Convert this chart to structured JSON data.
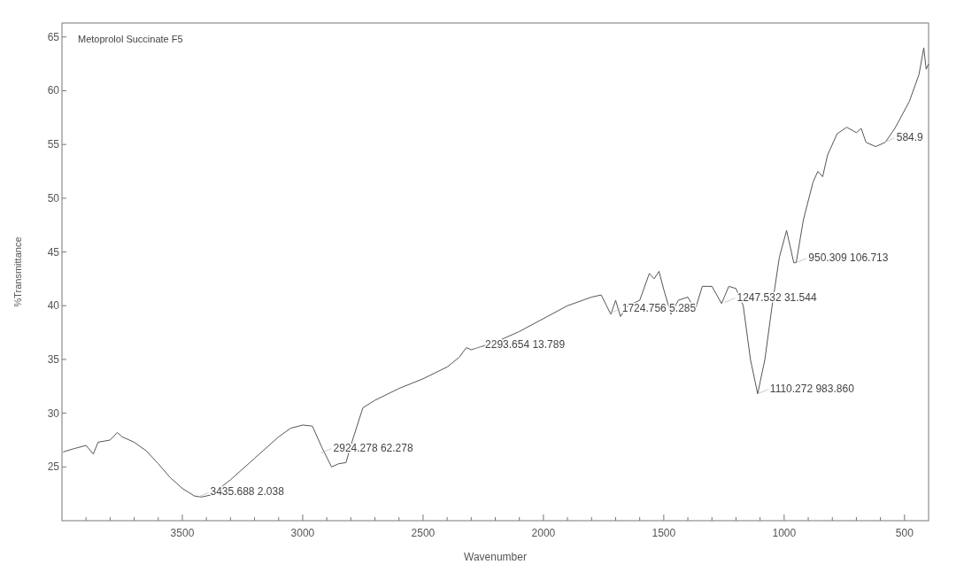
{
  "chart_data": {
    "type": "line",
    "title": "Metoprolol Succinate F5",
    "xlabel": "Wavenumber",
    "ylabel": "%Transmittance",
    "xlim": [
      4000,
      400
    ],
    "ylim": [
      20,
      66.3
    ],
    "xticks": [
      {
        "value": 3900,
        "label": null
      },
      {
        "value": 3800,
        "label": null
      },
      {
        "value": 3700,
        "label": null
      },
      {
        "value": 3600,
        "label": null
      },
      3500,
      {
        "value": 3400,
        "label": null
      },
      {
        "value": 3300,
        "label": null
      },
      {
        "value": 3200,
        "label": null
      },
      {
        "value": 3100,
        "label": null
      },
      3000,
      {
        "value": 2900,
        "label": null
      },
      {
        "value": 2800,
        "label": null
      },
      {
        "value": 2700,
        "label": null
      },
      {
        "value": 2600,
        "label": null
      },
      2500,
      {
        "value": 2400,
        "label": null
      },
      {
        "value": 2300,
        "label": null
      },
      {
        "value": 2200,
        "label": null
      },
      {
        "value": 2100,
        "label": null
      },
      2000,
      {
        "value": 1900,
        "label": null
      },
      {
        "value": 1800,
        "label": null
      },
      {
        "value": 1700,
        "label": null
      },
      {
        "value": 1600,
        "label": null
      },
      1500,
      {
        "value": 1400,
        "label": null
      },
      {
        "value": 1300,
        "label": null
      },
      {
        "value": 1200,
        "label": null
      },
      {
        "value": 1100,
        "label": null
      },
      1000,
      {
        "value": 900,
        "label": null
      },
      {
        "value": 800,
        "label": null
      },
      {
        "value": 700,
        "label": null
      },
      {
        "value": 600,
        "label": null
      },
      500
    ],
    "yticks": [
      25,
      30,
      35,
      40,
      45,
      50,
      55,
      60,
      65
    ],
    "grid": false,
    "marker": "none",
    "line_style": "solid",
    "series": [
      {
        "color": "#555555",
        "x": [
          3995,
          3950,
          3900,
          3870,
          3850,
          3800,
          3770,
          3750,
          3700,
          3650,
          3600,
          3550,
          3500,
          3450,
          3420,
          3380,
          3300,
          3200,
          3100,
          3050,
          3000,
          2960,
          2920,
          2880,
          2850,
          2820,
          2800,
          2750,
          2700,
          2600,
          2500,
          2400,
          2350,
          2320,
          2300,
          2200,
          2100,
          2000,
          1900,
          1800,
          1760,
          1720,
          1700,
          1680,
          1650,
          1600,
          1560,
          1540,
          1520,
          1500,
          1470,
          1440,
          1400,
          1370,
          1340,
          1300,
          1260,
          1230,
          1200,
          1170,
          1140,
          1110,
          1080,
          1050,
          1020,
          990,
          960,
          950,
          920,
          880,
          860,
          840,
          820,
          780,
          740,
          700,
          680,
          660,
          620,
          580,
          540,
          480,
          440,
          420,
          410,
          400
        ],
        "values": [
          26.4,
          26.7,
          27.0,
          26.2,
          27.3,
          27.5,
          28.2,
          27.8,
          27.3,
          26.5,
          25.3,
          24.0,
          23.0,
          22.3,
          22.2,
          22.4,
          23.8,
          25.8,
          27.8,
          28.6,
          28.9,
          28.8,
          26.8,
          25.0,
          25.3,
          25.4,
          27.0,
          30.5,
          31.2,
          32.3,
          33.2,
          34.3,
          35.2,
          36.1,
          35.9,
          36.6,
          37.6,
          38.8,
          40.0,
          40.8,
          41.0,
          39.2,
          40.5,
          39.0,
          40.0,
          40.5,
          43.0,
          42.5,
          43.2,
          41.5,
          39.2,
          40.5,
          40.8,
          39.6,
          41.8,
          41.8,
          40.2,
          41.8,
          41.6,
          40.0,
          35.0,
          31.8,
          35.0,
          40.0,
          44.5,
          47.0,
          44.0,
          44.0,
          48.0,
          51.5,
          52.5,
          52.0,
          54.0,
          56.0,
          56.6,
          56.1,
          56.5,
          55.2,
          54.8,
          55.2,
          56.5,
          59.0,
          61.5,
          64.0,
          62.0,
          62.5
        ]
      }
    ],
    "annotations": [
      {
        "text": "3435.688  2.038",
        "x": 3435.688,
        "y": 22.2
      },
      {
        "text": "2924.278  62.278",
        "x": 2924.278,
        "y": 26.3
      },
      {
        "text": "2293.654  13.789",
        "x": 2293.654,
        "y": 35.9
      },
      {
        "text": "1724.756  5.285",
        "x": 1724.756,
        "y": 39.3
      },
      {
        "text": "1247.532  31.544",
        "x": 1247.532,
        "y": 40.3
      },
      {
        "text": "1110.272  983.860",
        "x": 1110.272,
        "y": 31.8
      },
      {
        "text": "950.309  106.713",
        "x": 950.309,
        "y": 44.0
      },
      {
        "text": "584.9",
        "x": 584.9,
        "y": 55.2
      }
    ]
  }
}
